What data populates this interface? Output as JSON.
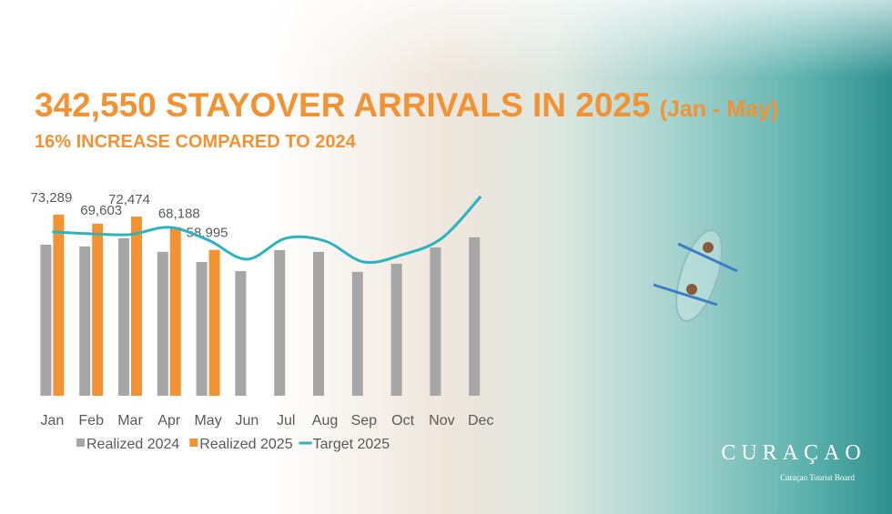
{
  "chart_data": {
    "type": "bar",
    "title": "342,550 STAYOVER ARRIVALS IN 2025",
    "title_note": "(Jan - May)",
    "subtitle": "16% INCREASE COMPARED TO 2024",
    "categories": [
      "Jan",
      "Feb",
      "Mar",
      "Apr",
      "May",
      "Jun",
      "Jul",
      "Aug",
      "Sep",
      "Oct",
      "Nov",
      "Dec"
    ],
    "ylim": [
      0,
      85000
    ],
    "legend": "bottom",
    "series": [
      {
        "name": "Realized 2024",
        "type": "bar",
        "color": "#a6a6a6",
        "values": [
          61100,
          60400,
          63700,
          58200,
          54100,
          50400,
          58900,
          58200,
          50100,
          53400,
          60000,
          64100
        ]
      },
      {
        "name": "Realized 2025",
        "type": "bar",
        "color": "#f39232",
        "values": [
          73289,
          69603,
          72474,
          68188,
          58995,
          null,
          null,
          null,
          null,
          null,
          null,
          null
        ],
        "value_labels": [
          "73,289",
          "69,603",
          "72,474",
          "68,188",
          "58,995",
          null,
          null,
          null,
          null,
          null,
          null,
          null
        ]
      },
      {
        "name": "Target 2025",
        "type": "line",
        "color": "#2ab3c0",
        "values": [
          66300,
          65500,
          65200,
          68100,
          63000,
          55200,
          63700,
          62600,
          54100,
          57100,
          63700,
          80600
        ]
      }
    ],
    "logo": {
      "name": "CURAÇAO",
      "tagline": "Curaçao Tourist Board"
    }
  }
}
